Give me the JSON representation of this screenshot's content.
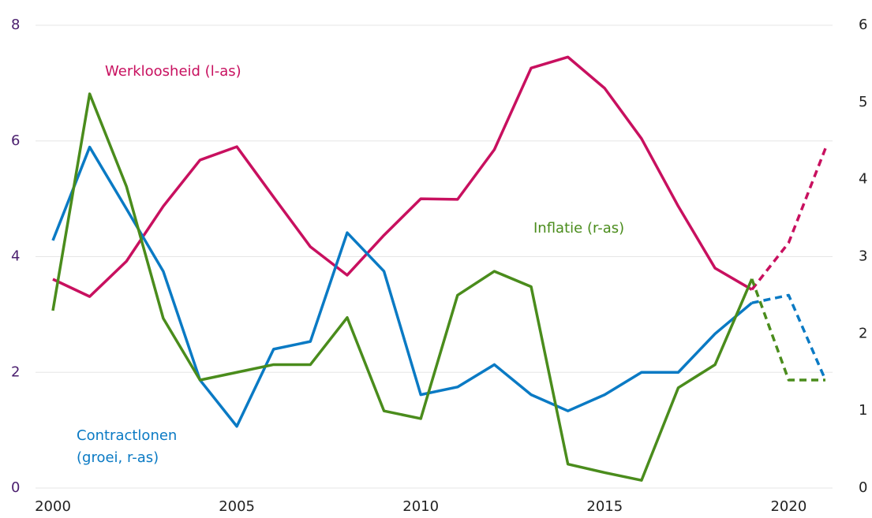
{
  "chart_data": {
    "type": "line",
    "x": [
      2000,
      2001,
      2002,
      2003,
      2004,
      2005,
      2006,
      2007,
      2008,
      2009,
      2010,
      2011,
      2012,
      2013,
      2014,
      2015,
      2016,
      2017,
      2018,
      2019,
      2020,
      2021
    ],
    "xlim": [
      2000,
      2021
    ],
    "xticks": [
      2000,
      2005,
      2010,
      2015,
      2020
    ],
    "ylim": [
      0,
      8
    ],
    "yticks": [
      0,
      2,
      4,
      6,
      8
    ],
    "y2lim": [
      0,
      6
    ],
    "y2ticks": [
      0,
      1,
      2,
      3,
      4,
      5,
      6
    ],
    "grid": true,
    "dashed_from": 2019,
    "series": [
      {
        "name": [
          "Werkloosheid (l-as)"
        ],
        "color": "#c8105f",
        "axis": "y",
        "values": [
          3.61,
          3.31,
          3.92,
          4.87,
          5.67,
          5.9,
          5.03,
          4.17,
          3.68,
          4.37,
          5.0,
          4.99,
          5.85,
          7.26,
          7.45,
          6.91,
          6.04,
          4.87,
          3.8,
          3.43,
          4.24,
          5.87
        ]
      },
      {
        "name": [
          "Contractlonen",
          "(groei, r-as)"
        ],
        "color": "#0a7ac4",
        "axis": "y2",
        "values": [
          3.21,
          4.42,
          3.62,
          2.81,
          1.4,
          0.8,
          1.8,
          1.9,
          3.31,
          2.81,
          1.21,
          1.31,
          1.6,
          1.21,
          1.0,
          1.21,
          1.5,
          1.5,
          2.0,
          2.4,
          2.5,
          1.4
        ]
      },
      {
        "name": [
          "Inflatie (r-as)"
        ],
        "color": "#4a8c1c",
        "axis": "y2",
        "values": [
          2.3,
          5.11,
          3.91,
          2.2,
          1.4,
          1.5,
          1.6,
          1.6,
          2.21,
          1.0,
          0.9,
          2.5,
          2.81,
          2.61,
          0.31,
          0.2,
          0.1,
          1.3,
          1.6,
          2.71,
          1.4,
          1.4
        ]
      }
    ]
  }
}
